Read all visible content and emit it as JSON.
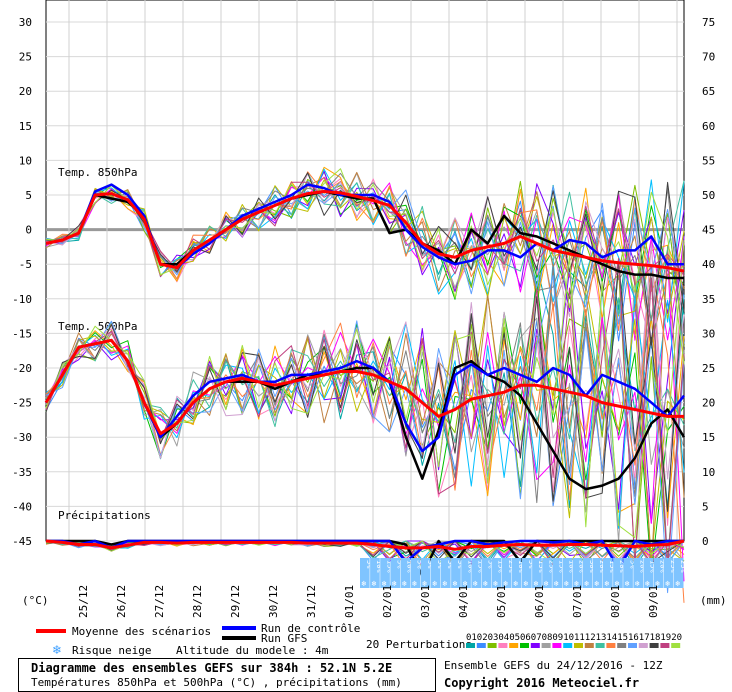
{
  "chart_data": {
    "type": "line",
    "title": "Diagramme des ensembles GEFS sur 384h : 52.1N 5.2E",
    "subtitle": "Températures 850hPa et 500hPa (°C) , précipitations (mm)",
    "left_axis": {
      "unit": "(°C)",
      "ticks": [
        30,
        25,
        20,
        15,
        10,
        5,
        0,
        -5,
        -10,
        -15,
        -20,
        -25,
        -30,
        -35,
        -40,
        -45
      ],
      "ylim": [
        -45,
        30
      ]
    },
    "right_axis": {
      "unit": "(mm)",
      "ticks": [
        75,
        70,
        65,
        60,
        55,
        50,
        45,
        40,
        35,
        30,
        25,
        20,
        15,
        10,
        5,
        0
      ],
      "ylim": [
        0,
        75
      ]
    },
    "x_dates": [
      "25/12",
      "26/12",
      "27/12",
      "28/12",
      "29/12",
      "30/12",
      "31/12",
      "01/01",
      "02/01",
      "03/01",
      "04/01",
      "05/01",
      "06/01",
      "07/01",
      "08/01",
      "09/01"
    ],
    "panel_labels": {
      "t850": "Temp. 850hPa",
      "t500": "Temp. 500hPa",
      "precip": "Précipitations"
    },
    "snow_risk_percent": [
      "5%",
      "10%",
      "15%",
      "5%",
      "10%",
      "5%",
      "5%",
      "5%",
      "5%",
      "5%",
      "10%",
      "15%",
      "5%",
      "15%",
      "25%",
      "10%",
      "5%",
      "15%",
      "25%",
      "15%",
      "10%",
      "20%",
      "30%",
      "20%",
      "15%",
      "20%",
      "5%",
      "20%",
      "15%",
      "20%",
      "25%",
      "25%"
    ],
    "series": [
      {
        "name": "Moyenne des scénarios",
        "color": "#ff0000",
        "t850": [
          -2,
          -1.5,
          -0.5,
          5,
          5.2,
          4.3,
          1.5,
          -5,
          -5.5,
          -3,
          -1.5,
          0,
          1.5,
          2.5,
          3.5,
          4.5,
          5.2,
          5.5,
          5.3,
          4.8,
          4.2,
          3.5,
          1,
          -2,
          -3.5,
          -4,
          -3,
          -2.5,
          -2,
          -1,
          -2,
          -3,
          -3.5,
          -4,
          -4.5,
          -4.8,
          -5,
          -5.2,
          -5.5,
          -6
        ],
        "t500": [
          -25,
          -21,
          -17,
          -16.5,
          -16,
          -19,
          -25,
          -29.5,
          -28,
          -25,
          -23,
          -22,
          -21.5,
          -22,
          -22.5,
          -22,
          -21.5,
          -21,
          -20.5,
          -20.5,
          -21,
          -22,
          -23,
          -25,
          -27,
          -26,
          -24.5,
          -24,
          -23.5,
          -22.5,
          -22.5,
          -23,
          -23.5,
          -24,
          -25,
          -25.5,
          -26,
          -26.5,
          -27,
          -27
        ],
        "precip": [
          0,
          0.2,
          0.5,
          0.5,
          1,
          0.6,
          0.2,
          0.2,
          0.3,
          0.2,
          0.2,
          0.2,
          0.2,
          0.2,
          0.2,
          0.2,
          0.3,
          0.3,
          0.3,
          0.3,
          0.5,
          0.8,
          1,
          1,
          0.8,
          1.2,
          0.8,
          0.8,
          0.6,
          0.5,
          0.6,
          0.6,
          0.5,
          0.5,
          0.6,
          0.7,
          0.8,
          0.6,
          0.5,
          0
        ]
      },
      {
        "name": "Run de contrôle",
        "color": "#0000ff",
        "t850": [
          -2,
          -1.5,
          -0.5,
          5.5,
          6.5,
          5,
          2,
          -5,
          -5.5,
          -3.5,
          -2,
          0,
          2,
          3,
          4,
          5,
          6.5,
          6,
          5,
          5,
          5,
          4,
          0,
          -2.5,
          -4,
          -5,
          -4.5,
          -3,
          -3,
          -4,
          -2,
          -3,
          -1.5,
          -2,
          -4,
          -3,
          -3,
          -1,
          -5,
          -5
        ],
        "t500": [
          -25,
          -21,
          -17,
          -16.5,
          -16,
          -19,
          -25,
          -30,
          -27,
          -24,
          -22,
          -21.5,
          -21,
          -22,
          -22,
          -21,
          -21,
          -20.5,
          -20,
          -19,
          -20,
          -22,
          -28,
          -32,
          -30,
          -21,
          -19.5,
          -21,
          -20,
          -21,
          -22,
          -20,
          -21,
          -24,
          -21,
          -22,
          -23,
          -25,
          -27,
          -24
        ],
        "precip": [
          0,
          0,
          0.5,
          0,
          1,
          0,
          0,
          0,
          0,
          0,
          0,
          0,
          0,
          0,
          0,
          0,
          0,
          0,
          0,
          0,
          0,
          0,
          3,
          1,
          0.5,
          0,
          0,
          0.5,
          0.2,
          0,
          0,
          0.2,
          0,
          0.5,
          0,
          4,
          0,
          0.5,
          0,
          0
        ]
      },
      {
        "name": "Run GFS",
        "color": "#000000",
        "t850": [
          -2,
          -1.5,
          -0.5,
          5,
          4.5,
          4,
          2,
          -5,
          -5,
          -3,
          -1.5,
          0,
          1.5,
          2.5,
          3.5,
          4.5,
          5,
          5.5,
          5,
          4.5,
          4.5,
          -0.5,
          0,
          -2,
          -3,
          -5,
          0,
          -2,
          2,
          -0.5,
          -1,
          -2,
          -3,
          -4,
          -5,
          -6,
          -6.5,
          -6.5,
          -7,
          -7
        ],
        "t500": [
          -25,
          -21,
          -17,
          -16.5,
          -16,
          -19,
          -25,
          -30,
          -28,
          -25,
          -23,
          -22,
          -22,
          -22,
          -23,
          -22,
          -21,
          -21,
          -20.5,
          -20,
          -20,
          -22,
          -30,
          -36,
          -29,
          -20,
          -19,
          -21,
          -22,
          -24,
          -28,
          -32,
          -36,
          -37.5,
          -37,
          -36,
          -33,
          -28,
          -26,
          -30
        ],
        "precip": [
          0,
          0,
          0,
          0,
          0.5,
          0,
          0,
          0,
          0,
          0,
          0,
          0,
          0,
          0,
          0,
          0,
          0,
          0,
          0,
          0,
          0,
          0,
          0.5,
          5,
          0,
          3,
          0,
          0,
          0,
          3,
          0,
          0,
          0,
          0,
          0,
          0,
          0,
          0,
          0,
          0
        ]
      }
    ],
    "perturbation_colors": [
      "#00a6a6",
      "#3c8cff",
      "#7fbf00",
      "#ff7fbf",
      "#ffa500",
      "#00c000",
      "#8000ff",
      "#a0a0a0",
      "#ff00ff",
      "#00bfff",
      "#bfbf00",
      "#c08040",
      "#40c0a0",
      "#ff8040",
      "#808080",
      "#60a0ff",
      "#d0a0d0",
      "#404040",
      "#c04080",
      "#a0e040"
    ],
    "perturbation_numbers": [
      "01",
      "02",
      "03",
      "04",
      "05",
      "06",
      "07",
      "08",
      "09",
      "10",
      "11",
      "12",
      "13",
      "14",
      "15",
      "16",
      "17",
      "18",
      "19",
      "20"
    ]
  },
  "legend": {
    "mean": "Moyenne des scénarios",
    "control": "Run de contrôle",
    "gfs": "Run GFS",
    "snow": "Risque neige",
    "altitude": "Altitude du modele : 4m",
    "perturbations": "20 Perturbations"
  },
  "footer": {
    "title": "Diagramme des ensembles GEFS sur 384h : 52.1N 5.2E",
    "subtitle": "Températures 850hPa et 500hPa (°C) , précipitations (mm)",
    "run": "Ensemble GEFS du 24/12/2016 - 12Z",
    "copyright": "Copyright 2016 Meteociel.fr"
  }
}
